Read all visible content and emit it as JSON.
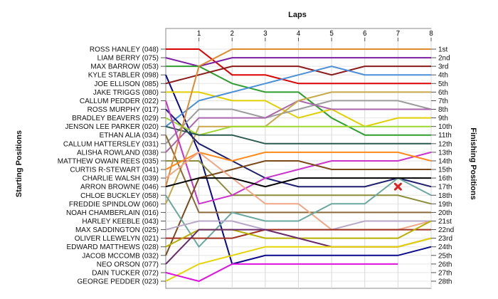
{
  "chart_data": {
    "type": "line",
    "title": "Laps",
    "ylabel_left": "Starting Positions",
    "ylabel_right": "Finishing Positions",
    "x": [
      0,
      1,
      2,
      3,
      4,
      5,
      6,
      7,
      8
    ],
    "x_tick_labels": [
      "",
      "1",
      "2",
      "3",
      "4",
      "5",
      "6",
      "7",
      "8"
    ],
    "ylim": [
      1,
      28
    ],
    "y_reversed": true,
    "grid": true,
    "starting_labels": [
      "ROSS HANLEY (048)",
      "LIAM BERRY (075)",
      "MAX BARROW (053)",
      "KYLE STABLER (098)",
      "JOE ELLISON (085)",
      "JAKE TRIGGS (080)",
      "CALLUM PEDDER (022)",
      "ROSS MURPHY (017)",
      "BRADLEY BEAVERS (029)",
      "JENSON LEE PARKER (020)",
      "ETHAN ALIA (034)",
      "CALLUM HATTERSLEY (031)",
      "ALISHA ROWLAND (038)",
      "MATTHEW OWAIN REES (035)",
      "CURTIS R-STEWART (041)",
      "CHARLIE WALSH (039)",
      "ARRON BROWNE (046)",
      "CHLOE BUCKLEY (058)",
      "FREDDIE SPINDLOW (060)",
      "NOAH CHAMBERLAIN (016)",
      "HARLEY KEEBLE (043)",
      "MAX SADDINGTON (025)",
      "OLIVER LLEWELYN (021)",
      "EDWARD MATTHEWS (028)",
      "JACOB MCCOMB (032)",
      "NEO ORSON (077)",
      "DAIN TUCKER (072)",
      "GEORGE PEDDER (023)"
    ],
    "finishing_labels": [
      "1st",
      "2nd",
      "3rd",
      "4th",
      "5th",
      "6th",
      "7th",
      "8th",
      "9th",
      "10th",
      "11th",
      "12th",
      "13th",
      "14th",
      "15th",
      "16th",
      "17th",
      "18th",
      "19th",
      "20th",
      "21st",
      "22nd",
      "23rd",
      "24th",
      "25th",
      "26th",
      "27th",
      "28th"
    ],
    "series": [
      {
        "color": "#dd0000",
        "positions": [
          1,
          1,
          4,
          4,
          5,
          5,
          5,
          5,
          5
        ]
      },
      {
        "color": "#7b1fa2",
        "positions": [
          2,
          3,
          2,
          2,
          2,
          2,
          2,
          2,
          2
        ]
      },
      {
        "color": "#2e9e2e",
        "positions": [
          3,
          3,
          5,
          6,
          6,
          9,
          11,
          11,
          11
        ]
      },
      {
        "color": "#0a0a8c",
        "positions": [
          4,
          13,
          26,
          25,
          25,
          25,
          25,
          25,
          24
        ]
      },
      {
        "color": "#8b1a1a",
        "positions": [
          5,
          4,
          3,
          3,
          3,
          4,
          3,
          3,
          3
        ]
      },
      {
        "color": "#e0d000",
        "positions": [
          6,
          6,
          7,
          7,
          9,
          8,
          10,
          9,
          9
        ]
      },
      {
        "color": "#4a8fd8",
        "positions": [
          10,
          7,
          6,
          5,
          4,
          3,
          4,
          4,
          4
        ]
      },
      {
        "color": "#9c9c9c",
        "positions": [
          12,
          8,
          8,
          9,
          8,
          7,
          7,
          7,
          8
        ]
      },
      {
        "color": "#aa66aa",
        "positions": [
          13,
          9,
          9,
          9,
          7,
          8,
          8,
          8,
          8
        ]
      },
      {
        "color": "#c8a848",
        "positions": [
          19,
          10,
          10,
          10,
          7,
          6,
          6,
          6,
          6
        ]
      },
      {
        "color": "#1e1e6e",
        "positions": [
          8,
          12,
          14,
          16,
          17,
          17,
          17,
          16,
          17
        ]
      },
      {
        "color": "#8b6b3a",
        "positions": [
          11,
          20,
          20,
          20,
          20,
          20,
          20,
          20,
          20
        ]
      },
      {
        "color": "#8c8c3a",
        "positions": [
          14,
          14,
          18,
          18,
          18,
          18,
          18,
          18,
          19
        ]
      },
      {
        "color": "#9ed82e",
        "positions": [
          9,
          11,
          10,
          10,
          10,
          10,
          10,
          10,
          10
        ]
      },
      {
        "color": "#2a5a4e",
        "positions": [
          10,
          11,
          11,
          12,
          12,
          12,
          12,
          12,
          12
        ]
      },
      {
        "color": "#e08a30",
        "positions": [
          17,
          3,
          1,
          1,
          1,
          1,
          1,
          1,
          1
        ]
      },
      {
        "color": "#cc33cc",
        "positions": [
          7,
          19,
          18,
          16,
          15,
          14,
          14,
          14,
          13
        ]
      },
      {
        "color": "#ff8a1a",
        "positions": [
          15,
          13,
          14,
          13,
          13,
          13,
          13,
          13,
          14
        ]
      },
      {
        "color": "#7a4a1a",
        "positions": [
          25,
          16,
          15,
          14,
          14,
          15,
          15,
          15,
          15
        ]
      },
      {
        "color": "#f0a888",
        "positions": [
          16,
          13,
          16,
          19,
          19,
          22,
          22,
          22,
          21
        ]
      },
      {
        "color": "#6aa8a0",
        "positions": [
          18,
          24,
          20,
          21,
          21,
          19,
          19,
          16,
          18
        ]
      },
      {
        "color": "#b8a8c8",
        "positions": [
          22,
          21,
          21,
          22,
          22,
          22,
          21,
          21,
          21
        ]
      },
      {
        "color": "#000000",
        "positions": [
          17,
          16,
          16,
          17,
          16,
          16,
          16,
          16,
          16
        ]
      },
      {
        "color": "#a03020",
        "positions": [
          23,
          23,
          23,
          22,
          22,
          22,
          22,
          22,
          22
        ]
      },
      {
        "color": "#b8b000",
        "positions": [
          24,
          22,
          22,
          23,
          23,
          23,
          23,
          23,
          21
        ]
      },
      {
        "color": "#6a2a6a",
        "positions": [
          26,
          22,
          22,
          22,
          23,
          24,
          24,
          24,
          23
        ]
      },
      {
        "color": "#e6d400",
        "positions": [
          28,
          26,
          25,
          24,
          24,
          24,
          24,
          24,
          23
        ]
      },
      {
        "color": "#e010e0",
        "positions": [
          27,
          28,
          26,
          26,
          26,
          26,
          26,
          26,
          null
        ]
      }
    ],
    "annotations": [
      {
        "type": "x-marker",
        "color": "#dd2222",
        "x": 7,
        "position": 17
      }
    ]
  }
}
